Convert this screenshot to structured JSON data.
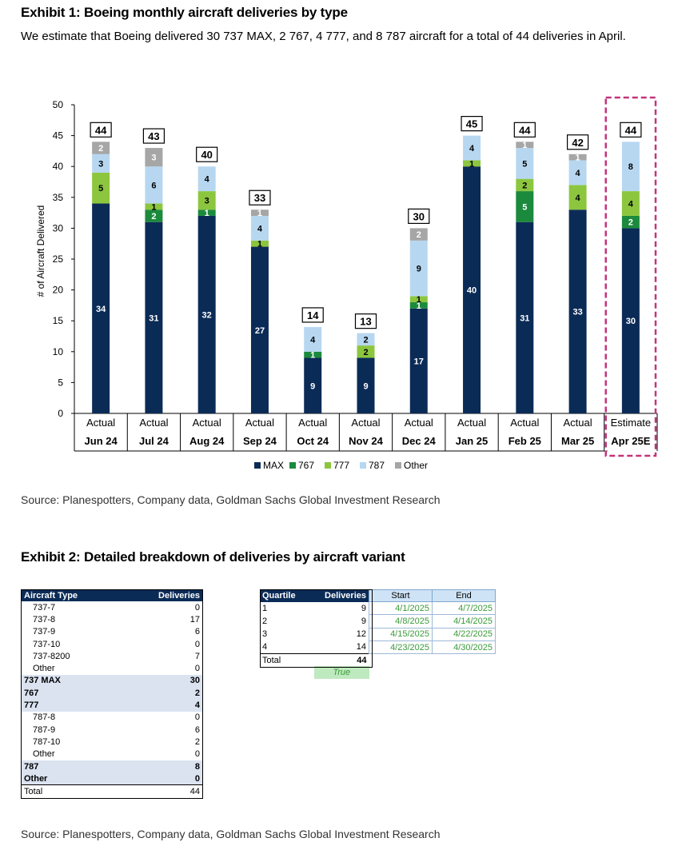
{
  "exhibit1": {
    "title": "Exhibit 1: Boeing monthly aircraft deliveries by type",
    "subtitle": "We estimate that Boeing delivered 30 737 MAX, 2 767, 4 777, and 8 787 aircraft for a total of 44 deliveries in April.",
    "source": "Source: Planespotters, Company data, Goldman Sachs Global Investment Research"
  },
  "chart_data": {
    "type": "bar",
    "stacked": true,
    "ylabel": "# of Aircraft Delivered",
    "ylim": [
      0,
      50
    ],
    "yticks": [
      0,
      5,
      10,
      15,
      20,
      25,
      30,
      35,
      40,
      45,
      50
    ],
    "categories": [
      {
        "top": "Actual",
        "bottom": "Jun 24"
      },
      {
        "top": "Actual",
        "bottom": "Jul 24"
      },
      {
        "top": "Actual",
        "bottom": "Aug 24"
      },
      {
        "top": "Actual",
        "bottom": "Sep 24"
      },
      {
        "top": "Actual",
        "bottom": "Oct 24"
      },
      {
        "top": "Actual",
        "bottom": "Nov 24"
      },
      {
        "top": "Actual",
        "bottom": "Dec 24"
      },
      {
        "top": "Actual",
        "bottom": "Jan 25"
      },
      {
        "top": "Actual",
        "bottom": "Feb 25"
      },
      {
        "top": "Actual",
        "bottom": "Mar 25"
      },
      {
        "top": "Estimate",
        "bottom": "Apr 25E"
      }
    ],
    "series": [
      {
        "name": "MAX",
        "color": "#0b2b57",
        "values": [
          34,
          31,
          32,
          27,
          9,
          9,
          17,
          40,
          31,
          33,
          30
        ]
      },
      {
        "name": "767",
        "color": "#1b8a3c",
        "values": [
          0,
          2,
          1,
          0,
          1,
          0,
          1,
          0,
          5,
          0,
          2
        ]
      },
      {
        "name": "777",
        "color": "#8cc63f",
        "values": [
          5,
          1,
          3,
          1,
          0,
          2,
          1,
          1,
          2,
          4,
          4
        ]
      },
      {
        "name": "787",
        "color": "#b7d7f1",
        "values": [
          3,
          6,
          4,
          4,
          4,
          2,
          9,
          4,
          5,
          4,
          8
        ]
      },
      {
        "name": "Other",
        "color": "#a6a6a6",
        "values": [
          2,
          3,
          0,
          1,
          0,
          0,
          2,
          0,
          1,
          1,
          0
        ]
      }
    ],
    "totals": [
      44,
      43,
      40,
      33,
      14,
      13,
      30,
      45,
      44,
      42,
      44
    ],
    "highlight": "Apr 25E"
  },
  "exhibit2": {
    "title": "Exhibit 2: Detailed breakdown of deliveries by aircraft variant",
    "source": "Source: Planespotters, Company data, Goldman Sachs Global Investment Research",
    "variant_table": {
      "headers": [
        "Aircraft Type",
        "Deliveries"
      ],
      "rows": [
        {
          "label": "737-7",
          "value": "0",
          "kind": "item"
        },
        {
          "label": "737-8",
          "value": "17",
          "kind": "item"
        },
        {
          "label": "737-9",
          "value": "6",
          "kind": "item"
        },
        {
          "label": "737-10",
          "value": "0",
          "kind": "item"
        },
        {
          "label": "737-8200",
          "value": "7",
          "kind": "item"
        },
        {
          "label": "Other",
          "value": "0",
          "kind": "item"
        },
        {
          "label": "737 MAX",
          "value": "30",
          "kind": "sub"
        },
        {
          "label": "767",
          "value": "2",
          "kind": "sub"
        },
        {
          "label": "777",
          "value": "4",
          "kind": "sub"
        },
        {
          "label": "787-8",
          "value": "0",
          "kind": "item"
        },
        {
          "label": "787-9",
          "value": "6",
          "kind": "item"
        },
        {
          "label": "787-10",
          "value": "2",
          "kind": "item"
        },
        {
          "label": "Other",
          "value": "0",
          "kind": "item"
        },
        {
          "label": "787",
          "value": "8",
          "kind": "sub"
        },
        {
          "label": "Other",
          "value": "0",
          "kind": "sub"
        },
        {
          "label": "Total",
          "value": "44",
          "kind": "total"
        }
      ]
    },
    "quartile_table": {
      "headers": [
        "Quartile",
        "Deliveries",
        "Start",
        "End"
      ],
      "rows": [
        {
          "q": "1",
          "deliveries": "9",
          "start": "4/1/2025",
          "end": "4/7/2025"
        },
        {
          "q": "2",
          "deliveries": "9",
          "start": "4/8/2025",
          "end": "4/14/2025"
        },
        {
          "q": "3",
          "deliveries": "12",
          "start": "4/15/2025",
          "end": "4/22/2025"
        },
        {
          "q": "4",
          "deliveries": "14",
          "start": "4/23/2025",
          "end": "4/30/2025"
        }
      ],
      "total_label": "Total",
      "total_value": "44",
      "check": "True"
    }
  }
}
